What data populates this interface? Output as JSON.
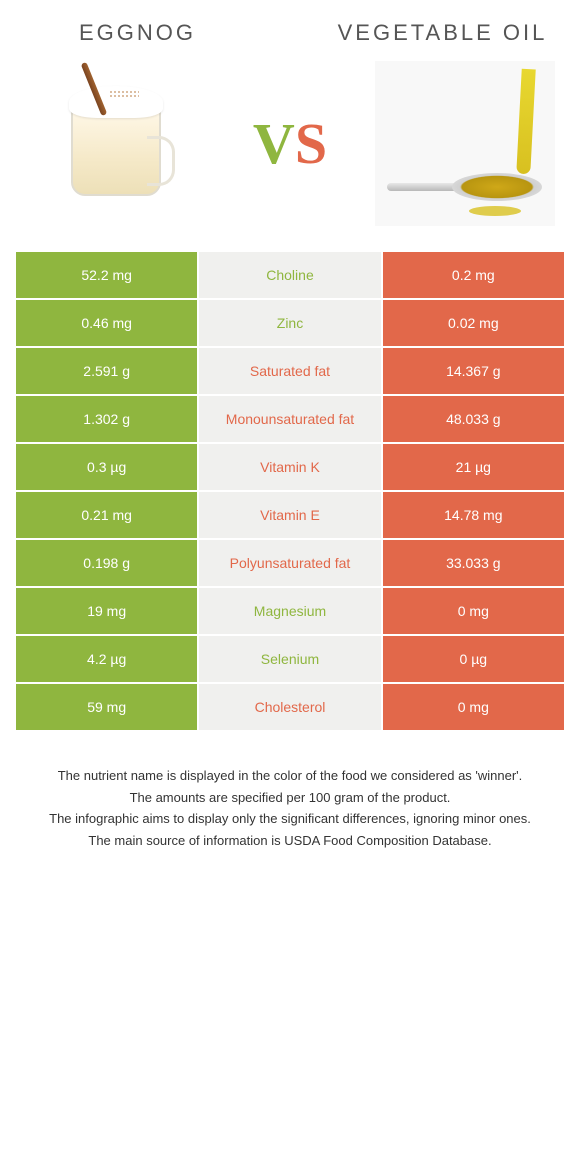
{
  "titles": {
    "left": "Eggnog",
    "right": "Vegetable oil"
  },
  "vs": {
    "v": "V",
    "s": "S"
  },
  "colors": {
    "green": "#8fb63f",
    "orange": "#e2684a",
    "mid_bg": "#f0f0ee",
    "white": "#ffffff"
  },
  "rows": [
    {
      "left": "52.2 mg",
      "label": "Choline",
      "right": "0.2 mg",
      "winner": "green"
    },
    {
      "left": "0.46 mg",
      "label": "Zinc",
      "right": "0.02 mg",
      "winner": "green"
    },
    {
      "left": "2.591 g",
      "label": "Saturated fat",
      "right": "14.367 g",
      "winner": "orange"
    },
    {
      "left": "1.302 g",
      "label": "Monounsaturated fat",
      "right": "48.033 g",
      "winner": "orange"
    },
    {
      "left": "0.3 µg",
      "label": "Vitamin K",
      "right": "21 µg",
      "winner": "orange"
    },
    {
      "left": "0.21 mg",
      "label": "Vitamin E",
      "right": "14.78 mg",
      "winner": "orange"
    },
    {
      "left": "0.198 g",
      "label": "Polyunsaturated fat",
      "right": "33.033 g",
      "winner": "orange"
    },
    {
      "left": "19 mg",
      "label": "Magnesium",
      "right": "0 mg",
      "winner": "green"
    },
    {
      "left": "4.2 µg",
      "label": "Selenium",
      "right": "0 µg",
      "winner": "green"
    },
    {
      "left": "59 mg",
      "label": "Cholesterol",
      "right": "0 mg",
      "winner": "orange"
    }
  ],
  "footer": [
    "The nutrient name is displayed in the color of the food we considered as 'winner'.",
    "The amounts are specified per 100 gram of the product.",
    "The infographic aims to display only the significant differences, ignoring minor ones.",
    "The main source of information is USDA Food Composition Database."
  ]
}
